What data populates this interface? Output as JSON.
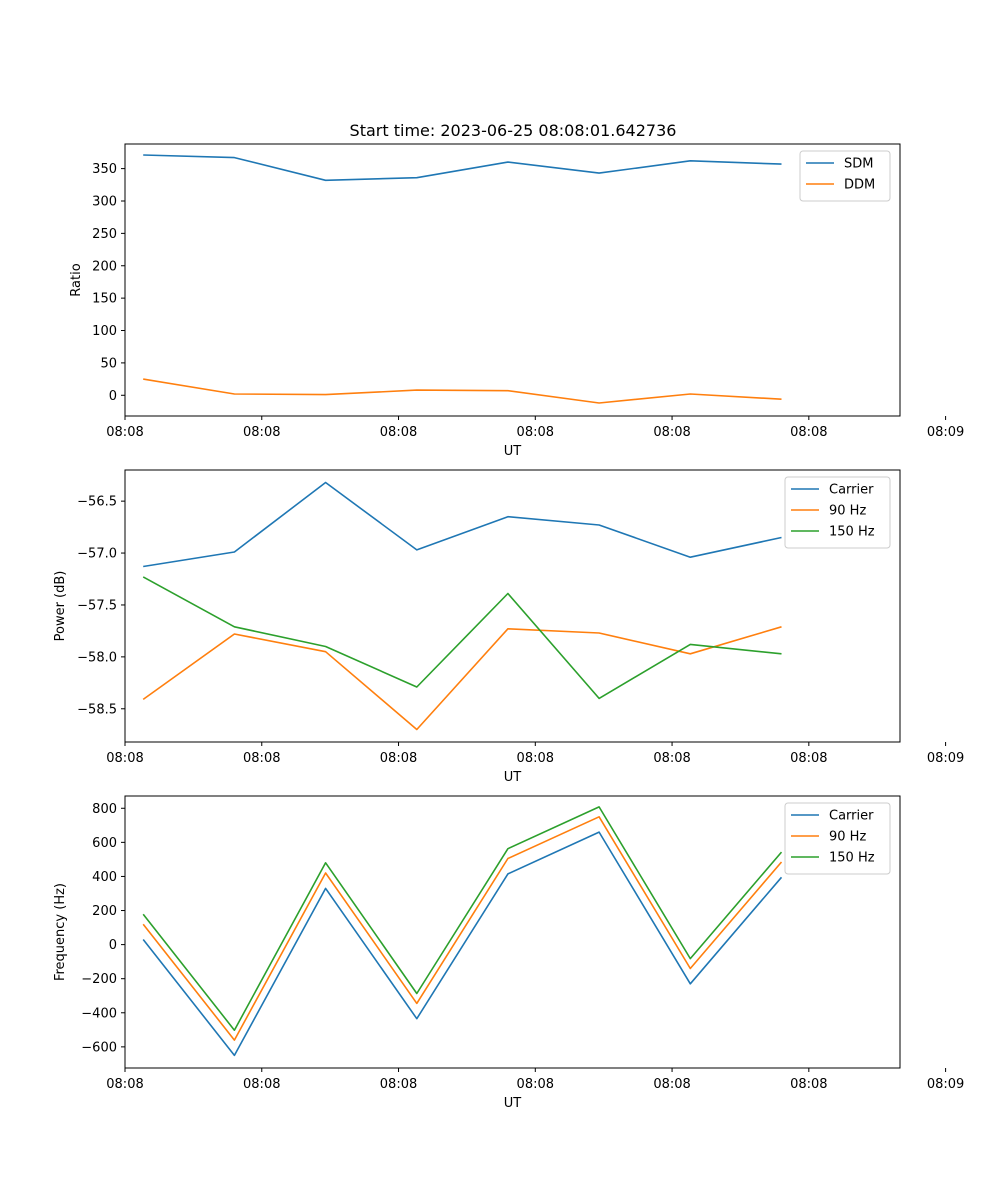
{
  "figure_title": "Start time: 2023-06-25 08:08:01.642736",
  "colors": {
    "blue": "#1f77b4",
    "orange": "#ff7f0e",
    "green": "#2ca02c"
  },
  "chart_data": [
    {
      "type": "line",
      "xlabel": "UT",
      "ylabel": "Ratio",
      "x": [
        1,
        2,
        3,
        4,
        5,
        6,
        7,
        8
      ],
      "xlim": [
        0.8,
        9.3
      ],
      "xticks": [
        0.8,
        2.3,
        3.8,
        5.3,
        6.8,
        8.3,
        9.8
      ],
      "xtick_labels": [
        "08:08",
        "08:08",
        "08:08",
        "08:08",
        "08:08",
        "08:08",
        "08:09"
      ],
      "ylim": [
        -32,
        388
      ],
      "yticks": [
        0,
        50,
        100,
        150,
        200,
        250,
        300,
        350
      ],
      "ytick_labels": [
        "0",
        "50",
        "100",
        "150",
        "200",
        "250",
        "300",
        "350"
      ],
      "legend_position": "top-right",
      "series": [
        {
          "name": "SDM",
          "color": "#1f77b4",
          "values": [
            371,
            367,
            332,
            336,
            360,
            343,
            362,
            357
          ]
        },
        {
          "name": "DDM",
          "color": "#ff7f0e",
          "values": [
            25,
            2,
            1,
            8,
            7,
            -12,
            2,
            -6
          ]
        }
      ]
    },
    {
      "type": "line",
      "xlabel": "UT",
      "ylabel": "Power (dB)",
      "x": [
        1,
        2,
        3,
        4,
        5,
        6,
        7,
        8
      ],
      "xlim": [
        0.8,
        9.3
      ],
      "xticks": [
        0.8,
        2.3,
        3.8,
        5.3,
        6.8,
        8.3,
        9.8
      ],
      "xtick_labels": [
        "08:08",
        "08:08",
        "08:08",
        "08:08",
        "08:08",
        "08:08",
        "08:09"
      ],
      "ylim": [
        -58.82,
        -56.2
      ],
      "yticks": [
        -58.5,
        -58.0,
        -57.5,
        -57.0,
        -56.5
      ],
      "ytick_labels": [
        "−58.5",
        "−58.0",
        "−57.5",
        "−57.0",
        "−56.5"
      ],
      "legend_position": "top-right",
      "series": [
        {
          "name": "Carrier",
          "color": "#1f77b4",
          "values": [
            -57.13,
            -56.99,
            -56.32,
            -56.97,
            -56.65,
            -56.73,
            -57.04,
            -56.85
          ]
        },
        {
          "name": "90 Hz",
          "color": "#ff7f0e",
          "values": [
            -58.41,
            -57.78,
            -57.95,
            -58.7,
            -57.73,
            -57.77,
            -57.97,
            -57.71
          ]
        },
        {
          "name": "150 Hz",
          "color": "#2ca02c",
          "values": [
            -57.23,
            -57.71,
            -57.9,
            -58.29,
            -57.39,
            -58.4,
            -57.88,
            -57.97
          ]
        }
      ]
    },
    {
      "type": "line",
      "xlabel": "UT",
      "ylabel": "Frequency (Hz)",
      "x": [
        1,
        2,
        3,
        4,
        5,
        6,
        7,
        8
      ],
      "xlim": [
        0.8,
        9.3
      ],
      "xticks": [
        0.8,
        2.3,
        3.8,
        5.3,
        6.8,
        8.3,
        9.8
      ],
      "xtick_labels": [
        "08:08",
        "08:08",
        "08:08",
        "08:08",
        "08:08",
        "08:08",
        "08:09"
      ],
      "ylim": [
        -724,
        872
      ],
      "yticks": [
        -600,
        -400,
        -200,
        0,
        200,
        400,
        600,
        800
      ],
      "ytick_labels": [
        "−600",
        "−400",
        "−200",
        "0",
        "200",
        "400",
        "600",
        "800"
      ],
      "legend_position": "top-right",
      "series": [
        {
          "name": "Carrier",
          "color": "#1f77b4",
          "values": [
            30,
            -650,
            330,
            -435,
            415,
            660,
            -230,
            395
          ]
        },
        {
          "name": "90 Hz",
          "color": "#ff7f0e",
          "values": [
            120,
            -560,
            420,
            -345,
            505,
            750,
            -140,
            485
          ]
        },
        {
          "name": "150 Hz",
          "color": "#2ca02c",
          "values": [
            178,
            -502,
            480,
            -287,
            563,
            808,
            -82,
            543
          ]
        }
      ]
    }
  ]
}
